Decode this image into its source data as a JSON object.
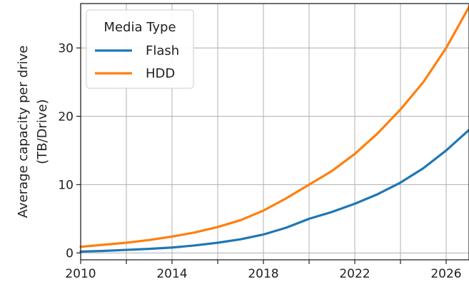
{
  "chart_data": {
    "type": "line",
    "ylabel": "Average capacity per drive\n(TB/Drive)",
    "xlabel": "",
    "xlim": [
      2010,
      2027
    ],
    "ylim": [
      -1,
      36.5
    ],
    "xticks": [
      2010,
      2014,
      2018,
      2022,
      2026
    ],
    "yticks": [
      0,
      10,
      20,
      30
    ],
    "minor_xticks": [
      2012,
      2016,
      2020,
      2024
    ],
    "grid": true,
    "legend": {
      "title": "Media Type",
      "position": "top-left"
    },
    "series": [
      {
        "name": "Flash",
        "color": "#1f77b4",
        "x": [
          2010,
          2011,
          2012,
          2013,
          2014,
          2015,
          2016,
          2017,
          2018,
          2019,
          2020,
          2021,
          2022,
          2023,
          2024,
          2025,
          2026,
          2027
        ],
        "y": [
          0.2,
          0.3,
          0.45,
          0.6,
          0.8,
          1.1,
          1.5,
          2.0,
          2.7,
          3.7,
          5.0,
          6.0,
          7.2,
          8.6,
          10.3,
          12.4,
          15.0,
          18.0
        ]
      },
      {
        "name": "HDD",
        "color": "#ff7f0e",
        "x": [
          2010,
          2011,
          2012,
          2013,
          2014,
          2015,
          2016,
          2017,
          2018,
          2019,
          2020,
          2021,
          2022,
          2023,
          2024,
          2025,
          2026,
          2027
        ],
        "y": [
          0.9,
          1.2,
          1.5,
          1.9,
          2.4,
          3.0,
          3.8,
          4.8,
          6.2,
          8.0,
          10.0,
          12.0,
          14.5,
          17.5,
          21.0,
          25.0,
          30.0,
          36.0
        ]
      }
    ]
  }
}
